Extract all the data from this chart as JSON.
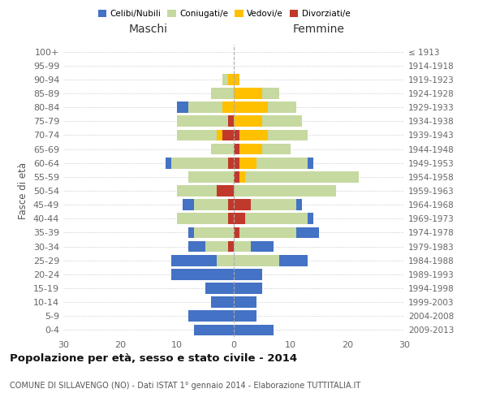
{
  "age_groups": [
    "0-4",
    "5-9",
    "10-14",
    "15-19",
    "20-24",
    "25-29",
    "30-34",
    "35-39",
    "40-44",
    "45-49",
    "50-54",
    "55-59",
    "60-64",
    "65-69",
    "70-74",
    "75-79",
    "80-84",
    "85-89",
    "90-94",
    "95-99",
    "100+"
  ],
  "anni_nascita": [
    "2009-2013",
    "2004-2008",
    "1999-2003",
    "1994-1998",
    "1989-1993",
    "1984-1988",
    "1979-1983",
    "1974-1978",
    "1969-1973",
    "1964-1968",
    "1959-1963",
    "1954-1958",
    "1949-1953",
    "1944-1948",
    "1939-1943",
    "1934-1938",
    "1929-1933",
    "1924-1928",
    "1919-1923",
    "1914-1918",
    "≤ 1913"
  ],
  "maschi": {
    "celibi": [
      7,
      8,
      4,
      5,
      11,
      8,
      3,
      1,
      0,
      2,
      0,
      0,
      1,
      0,
      0,
      0,
      2,
      0,
      0,
      0,
      0
    ],
    "coniugati": [
      0,
      0,
      0,
      0,
      0,
      3,
      4,
      7,
      9,
      6,
      7,
      8,
      10,
      4,
      7,
      9,
      6,
      4,
      1,
      0,
      0
    ],
    "vedovi": [
      0,
      0,
      0,
      0,
      0,
      0,
      0,
      0,
      0,
      0,
      0,
      0,
      0,
      0,
      1,
      0,
      2,
      0,
      1,
      0,
      0
    ],
    "divorziati": [
      0,
      0,
      0,
      0,
      0,
      0,
      1,
      0,
      1,
      1,
      3,
      0,
      1,
      0,
      2,
      1,
      0,
      0,
      0,
      0,
      0
    ]
  },
  "femmine": {
    "nubili": [
      7,
      4,
      4,
      5,
      5,
      5,
      4,
      4,
      1,
      1,
      0,
      0,
      1,
      0,
      0,
      0,
      0,
      0,
      0,
      0,
      0
    ],
    "coniugate": [
      0,
      0,
      0,
      0,
      0,
      8,
      3,
      10,
      11,
      8,
      18,
      20,
      9,
      5,
      7,
      7,
      5,
      3,
      0,
      0,
      0
    ],
    "vedove": [
      0,
      0,
      0,
      0,
      0,
      0,
      0,
      0,
      0,
      0,
      0,
      1,
      3,
      4,
      5,
      5,
      6,
      5,
      1,
      0,
      0
    ],
    "divorziate": [
      0,
      0,
      0,
      0,
      0,
      0,
      0,
      1,
      2,
      3,
      0,
      1,
      1,
      1,
      1,
      0,
      0,
      0,
      0,
      0,
      0
    ]
  },
  "colors": {
    "celibi": "#4472c4",
    "coniugati": "#c6d9a0",
    "vedovi": "#ffc000",
    "divorziati": "#c0392b"
  },
  "xlim": 30,
  "title": "Popolazione per età, sesso e stato civile - 2014",
  "subtitle": "COMUNE DI SILLAVENGO (NO) - Dati ISTAT 1° gennaio 2014 - Elaborazione TUTTITALIA.IT",
  "ylabel_left": "Fasce di età",
  "header_left": "Maschi",
  "header_right": "Femmine"
}
